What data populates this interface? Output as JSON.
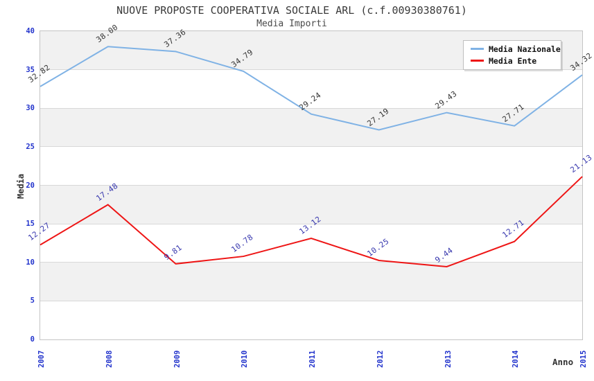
{
  "chart_data": {
    "type": "line",
    "title": "NUOVE PROPOSTE COOPERATIVA SOCIALE ARL (c.f.00930380761)",
    "subtitle": "Media Importi",
    "xlabel": "Anno",
    "ylabel": "Media",
    "x": [
      "2007",
      "2008",
      "2009",
      "2010",
      "2011",
      "2012",
      "2013",
      "2014",
      "2015"
    ],
    "ylim": [
      0,
      40
    ],
    "y_ticks": [
      0,
      5,
      10,
      15,
      20,
      25,
      30,
      35,
      40
    ],
    "grid": "horizontal gridlines with alternating gray/white bands every 5 units, gray band at top (35-40)",
    "legend_position": "top-right",
    "series": [
      {
        "name": "Media Nazionale",
        "color": "#7fb2e5",
        "label_color": "#333333",
        "values": [
          32.82,
          38.0,
          37.36,
          34.79,
          29.24,
          27.19,
          29.43,
          27.71,
          34.32
        ],
        "labels": [
          "32.82",
          "38.00",
          "37.36",
          "34.79",
          "29.24",
          "27.19",
          "29.43",
          "27.71",
          "34.32"
        ]
      },
      {
        "name": "Media Ente",
        "color": "#ee1515",
        "label_color": "#3737ae",
        "values": [
          12.27,
          17.48,
          9.81,
          10.78,
          13.12,
          10.25,
          9.44,
          12.71,
          21.13
        ],
        "labels": [
          "12.27",
          "17.48",
          "9.81",
          "10.78",
          "13.12",
          "10.25",
          "9.44",
          "12.71",
          "21.13"
        ]
      }
    ]
  },
  "colors": {
    "axis_tick_text": "#2233cc",
    "band_gray": "#f1f1f1",
    "band_white": "#ffffff",
    "gridline": "#d8d8d8",
    "plot_border": "#c4c4c4",
    "title_text": "#3a3a3a",
    "subtitle_text": "#4a4a4a",
    "axis_title_text": "#333333"
  }
}
